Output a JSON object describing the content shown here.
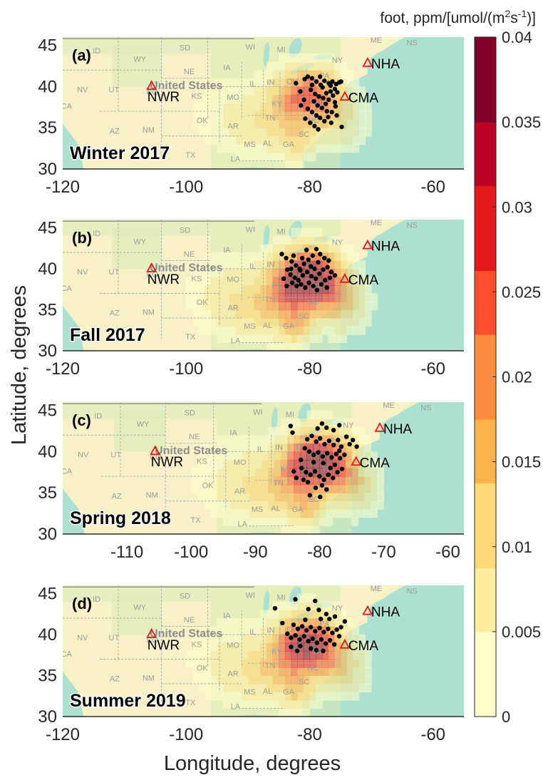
{
  "chart_data": [
    {
      "type": "scatter",
      "panel_label": "(a)",
      "season": "Winter 2017",
      "xlim": [
        -120,
        -55
      ],
      "ylim": [
        30,
        46
      ],
      "xticks": [
        -120,
        -100,
        -80,
        -60
      ],
      "yticks": [
        30,
        35,
        40,
        45
      ],
      "footprint_intensity": 0.6,
      "points": [
        [
          -82.2,
          40.4
        ],
        [
          -81.5,
          39.4
        ],
        [
          -80.8,
          40.9
        ],
        [
          -80.3,
          41.2
        ],
        [
          -79.6,
          41.0
        ],
        [
          -78.9,
          40.6
        ],
        [
          -78.2,
          40.2
        ],
        [
          -77.6,
          40.7
        ],
        [
          -76.9,
          40.4
        ],
        [
          -76.3,
          40.6
        ],
        [
          -75.7,
          40.3
        ],
        [
          -75.2,
          40.5
        ],
        [
          -79.8,
          39.6
        ],
        [
          -79.1,
          39.1
        ],
        [
          -78.5,
          38.8
        ],
        [
          -77.8,
          38.6
        ],
        [
          -77.3,
          39.2
        ],
        [
          -76.6,
          39.4
        ],
        [
          -75.9,
          39.7
        ],
        [
          -79.3,
          38.2
        ],
        [
          -78.7,
          37.7
        ],
        [
          -78.0,
          37.4
        ],
        [
          -77.4,
          37.9
        ],
        [
          -76.9,
          38.4
        ],
        [
          -80.3,
          37.3
        ],
        [
          -79.6,
          36.9
        ],
        [
          -78.9,
          36.5
        ],
        [
          -78.3,
          36.2
        ],
        [
          -77.6,
          35.8
        ],
        [
          -77.0,
          36.3
        ],
        [
          -76.4,
          36.9
        ],
        [
          -75.8,
          37.6
        ],
        [
          -76.2,
          38.9
        ],
        [
          -75.5,
          39.3
        ],
        [
          -80.7,
          36.1
        ],
        [
          -79.9,
          35.6
        ],
        [
          -79.2,
          35.2
        ],
        [
          -78.6,
          34.8
        ],
        [
          -74.8,
          35.1
        ],
        [
          -75.6,
          36.5
        ],
        [
          -74.9,
          40.6
        ],
        [
          -80.9,
          38.4
        ],
        [
          -81.4,
          37.7
        ],
        [
          -77.9,
          39.9
        ],
        [
          -79.6,
          40.2
        ],
        [
          -78.3,
          41.2
        ],
        [
          -76.6,
          40.1
        ],
        [
          -75.9,
          38.1
        ],
        [
          -77.2,
          37.0
        ],
        [
          -76.5,
          35.6
        ]
      ],
      "stations": [
        {
          "name": "NWR",
          "lon": -105.6,
          "lat": 40.1
        },
        {
          "name": "NHA",
          "lon": -70.6,
          "lat": 42.9
        },
        {
          "name": "CMA",
          "lon": -74.3,
          "lat": 38.8
        }
      ]
    },
    {
      "type": "scatter",
      "panel_label": "(b)",
      "season": "Fall 2017",
      "xlim": [
        -120,
        -55
      ],
      "ylim": [
        30,
        46
      ],
      "xticks": [
        -120,
        -100,
        -80,
        -60
      ],
      "yticks": [
        30,
        35,
        40,
        45
      ],
      "footprint_intensity": 0.95,
      "points": [
        [
          -84.5,
          41.8
        ],
        [
          -83.8,
          41.3
        ],
        [
          -82.9,
          40.9
        ],
        [
          -82.2,
          40.4
        ],
        [
          -81.5,
          39.8
        ],
        [
          -80.9,
          40.6
        ],
        [
          -80.2,
          41.1
        ],
        [
          -79.5,
          41.6
        ],
        [
          -78.9,
          42.4
        ],
        [
          -78.3,
          41.8
        ],
        [
          -77.6,
          41.3
        ],
        [
          -76.9,
          41.0
        ],
        [
          -83.6,
          39.9
        ],
        [
          -83.1,
          39.3
        ],
        [
          -82.4,
          38.9
        ],
        [
          -81.8,
          38.6
        ],
        [
          -81.1,
          39.2
        ],
        [
          -80.4,
          39.6
        ],
        [
          -79.7,
          39.1
        ],
        [
          -79.0,
          38.8
        ],
        [
          -78.4,
          39.4
        ],
        [
          -77.8,
          39.9
        ],
        [
          -77.1,
          40.2
        ],
        [
          -76.5,
          39.6
        ],
        [
          -82.8,
          38.3
        ],
        [
          -82.1,
          37.9
        ],
        [
          -81.4,
          38.1
        ],
        [
          -80.7,
          37.7
        ],
        [
          -80.1,
          38.3
        ],
        [
          -79.4,
          37.9
        ],
        [
          -78.8,
          37.4
        ],
        [
          -78.1,
          38.1
        ],
        [
          -77.5,
          38.6
        ],
        [
          -84.2,
          38.8
        ],
        [
          -83.7,
          37.9
        ],
        [
          -76.7,
          38.9
        ],
        [
          -75.9,
          39.2
        ],
        [
          -79.8,
          40.3
        ],
        [
          -81.2,
          41.3
        ],
        [
          -80.5,
          42.3
        ],
        [
          -82.6,
          41.6
        ],
        [
          -78.6,
          40.8
        ],
        [
          -77.2,
          37.7
        ],
        [
          -83.0,
          40.0
        ],
        [
          -79.2,
          40.0
        ],
        [
          -81.6,
          40.0
        ]
      ],
      "stations": [
        {
          "name": "NWR",
          "lon": -105.6,
          "lat": 40.1
        },
        {
          "name": "NHA",
          "lon": -70.6,
          "lat": 42.9
        },
        {
          "name": "CMA",
          "lon": -74.3,
          "lat": 38.8
        }
      ]
    },
    {
      "type": "scatter",
      "panel_label": "(c)",
      "season": "Spring 2018",
      "xlim": [
        -120,
        -57.5
      ],
      "ylim": [
        30,
        46
      ],
      "xticks": [
        -110,
        -100,
        -90,
        -80,
        -70,
        -60
      ],
      "yticks": [
        30,
        35,
        40,
        45
      ],
      "footprint_intensity": 0.85,
      "points": [
        [
          -84.5,
          43.1
        ],
        [
          -84.2,
          42.3
        ],
        [
          -79.6,
          43.4
        ],
        [
          -80.3,
          42.8
        ],
        [
          -78.9,
          42.9
        ],
        [
          -77.8,
          42.6
        ],
        [
          -76.9,
          43.2
        ],
        [
          -81.9,
          41.5
        ],
        [
          -81.2,
          41.9
        ],
        [
          -80.5,
          41.2
        ],
        [
          -79.9,
          41.6
        ],
        [
          -79.2,
          40.9
        ],
        [
          -78.5,
          41.3
        ],
        [
          -77.8,
          40.8
        ],
        [
          -77.1,
          41.4
        ],
        [
          -76.6,
          40.6
        ],
        [
          -75.8,
          41.8
        ],
        [
          -75.3,
          40.9
        ],
        [
          -74.8,
          41.4
        ],
        [
          -74.2,
          40.6
        ],
        [
          -82.3,
          40.4
        ],
        [
          -81.6,
          40.0
        ],
        [
          -80.9,
          39.6
        ],
        [
          -80.2,
          39.9
        ],
        [
          -79.5,
          39.4
        ],
        [
          -78.8,
          39.8
        ],
        [
          -78.1,
          39.3
        ],
        [
          -77.4,
          39.7
        ],
        [
          -76.8,
          39.2
        ],
        [
          -76.1,
          39.6
        ],
        [
          -84.0,
          37.6
        ],
        [
          -83.6,
          36.8
        ],
        [
          -82.8,
          38.0
        ],
        [
          -82.1,
          37.5
        ],
        [
          -81.4,
          37.2
        ],
        [
          -80.7,
          37.6
        ],
        [
          -80.0,
          37.0
        ],
        [
          -79.3,
          36.6
        ],
        [
          -78.6,
          37.2
        ],
        [
          -77.9,
          36.8
        ],
        [
          -77.2,
          37.5
        ],
        [
          -76.5,
          37.9
        ],
        [
          -79.6,
          35.9
        ],
        [
          -78.9,
          35.4
        ],
        [
          -80.6,
          35.6
        ],
        [
          -81.5,
          34.7
        ],
        [
          -79.9,
          34.5
        ],
        [
          -82.9,
          39.0
        ],
        [
          -77.6,
          38.4
        ],
        [
          -79.4,
          38.6
        ],
        [
          -80.9,
          38.7
        ],
        [
          -78.3,
          38.0
        ],
        [
          -81.8,
          36.3
        ],
        [
          -76.9,
          40.1
        ],
        [
          -82.5,
          36.6
        ]
      ],
      "stations": [
        {
          "name": "NWR",
          "lon": -105.6,
          "lat": 40.1
        },
        {
          "name": "NHA",
          "lon": -70.6,
          "lat": 42.9
        },
        {
          "name": "CMA",
          "lon": -74.3,
          "lat": 38.8
        }
      ]
    },
    {
      "type": "scatter",
      "panel_label": "(d)",
      "season": "Summer 2019",
      "xlim": [
        -120,
        -55
      ],
      "ylim": [
        30,
        46
      ],
      "xticks": [
        -120,
        -100,
        -80,
        -60
      ],
      "yticks": [
        30,
        35,
        40,
        45
      ],
      "footprint_intensity": 0.8,
      "points": [
        [
          -85.6,
          43.2
        ],
        [
          -84.4,
          41.4
        ],
        [
          -82.3,
          44.3
        ],
        [
          -79.1,
          44.1
        ],
        [
          -80.2,
          43.1
        ],
        [
          -78.5,
          43.0
        ],
        [
          -77.3,
          42.5
        ],
        [
          -76.8,
          41.9
        ],
        [
          -75.9,
          42.2
        ],
        [
          -82.6,
          41.2
        ],
        [
          -81.9,
          40.7
        ],
        [
          -81.2,
          41.0
        ],
        [
          -80.5,
          40.5
        ],
        [
          -79.8,
          40.9
        ],
        [
          -79.1,
          40.4
        ],
        [
          -78.4,
          40.8
        ],
        [
          -77.7,
          40.3
        ],
        [
          -77.0,
          40.7
        ],
        [
          -76.3,
          40.2
        ],
        [
          -75.6,
          40.6
        ],
        [
          -74.9,
          40.9
        ],
        [
          -74.3,
          41.6
        ],
        [
          -83.6,
          40.1
        ],
        [
          -83.0,
          39.6
        ],
        [
          -82.3,
          39.9
        ],
        [
          -81.6,
          39.4
        ],
        [
          -80.9,
          39.8
        ],
        [
          -80.2,
          39.2
        ],
        [
          -79.5,
          39.5
        ],
        [
          -78.8,
          39.0
        ],
        [
          -78.1,
          39.4
        ],
        [
          -77.4,
          38.9
        ],
        [
          -76.7,
          39.3
        ],
        [
          -76.0,
          38.8
        ],
        [
          -79.8,
          38.3
        ],
        [
          -78.9,
          38.1
        ],
        [
          -77.8,
          38.0
        ],
        [
          -81.5,
          38.6
        ],
        [
          -83.0,
          38.5
        ],
        [
          -80.7,
          41.8
        ],
        [
          -78.2,
          41.9
        ],
        [
          -75.2,
          39.8
        ],
        [
          -82.0,
          38.0
        ]
      ],
      "stations": [
        {
          "name": "NWR",
          "lon": -105.6,
          "lat": 40.1
        },
        {
          "name": "NHA",
          "lon": -70.6,
          "lat": 42.9
        },
        {
          "name": "CMA",
          "lon": -74.3,
          "lat": 38.8
        }
      ]
    }
  ],
  "axes": {
    "xlabel": "Longitude, degrees",
    "ylabel": "Latitude, degrees"
  },
  "colorbar": {
    "title_prefix": "foot, ppm/[umol/(m",
    "title_sup1": "2",
    "title_mid": "s",
    "title_sup2": "-1",
    "title_suffix": ")]",
    "min": 0,
    "max": 0.04,
    "ticks": [
      "0",
      "0.005",
      "0.01",
      "0.015",
      "0.02",
      "0.025",
      "0.03",
      "0.035",
      "0.04"
    ],
    "colors": [
      "#ffffcc",
      "#ffeda0",
      "#fed976",
      "#feb24c",
      "#fd8d3c",
      "#fc4e2a",
      "#e31a1c",
      "#bd0026",
      "#800026"
    ]
  },
  "map": {
    "country_label": "United States",
    "state_labels": [
      {
        "t": "ID",
        "lon": -114.5,
        "lat": 44.0
      },
      {
        "t": "WY",
        "lon": -107.5,
        "lat": 43.0
      },
      {
        "t": "SD",
        "lon": -100.2,
        "lat": 44.4
      },
      {
        "t": "MN",
        "lon": -94.3,
        "lat": 46.0
      },
      {
        "t": "WI",
        "lon": -89.6,
        "lat": 44.5
      },
      {
        "t": "MI",
        "lon": -84.6,
        "lat": 44.2
      },
      {
        "t": "NE",
        "lon": -99.5,
        "lat": 41.5
      },
      {
        "t": "IA",
        "lon": -93.4,
        "lat": 42.0
      },
      {
        "t": "IL",
        "lon": -89.2,
        "lat": 40.0
      },
      {
        "t": "IN",
        "lon": -86.3,
        "lat": 40.2
      },
      {
        "t": "OH",
        "lon": -82.8,
        "lat": 40.3
      },
      {
        "t": "PA",
        "lon": -77.6,
        "lat": 41.0
      },
      {
        "t": "NY",
        "lon": -75.5,
        "lat": 42.9
      },
      {
        "t": "ME",
        "lon": -69.2,
        "lat": 45.3
      },
      {
        "t": "NS",
        "lon": -63.4,
        "lat": 45.0
      },
      {
        "t": "NV",
        "lon": -116.8,
        "lat": 39.3
      },
      {
        "t": "UT",
        "lon": -111.7,
        "lat": 39.3
      },
      {
        "t": "CO",
        "lon": -105.5,
        "lat": 39.0
      },
      {
        "t": "KS",
        "lon": -98.3,
        "lat": 38.5
      },
      {
        "t": "MO",
        "lon": -92.4,
        "lat": 38.4
      },
      {
        "t": "KY",
        "lon": -85.3,
        "lat": 37.6
      },
      {
        "t": "VA",
        "lon": -78.8,
        "lat": 37.6
      },
      {
        "t": "CA",
        "lon": -119.4,
        "lat": 37.3
      },
      {
        "t": "AZ",
        "lon": -111.6,
        "lat": 34.3
      },
      {
        "t": "NM",
        "lon": -106.1,
        "lat": 34.4
      },
      {
        "t": "OK",
        "lon": -97.4,
        "lat": 35.6
      },
      {
        "t": "AR",
        "lon": -92.4,
        "lat": 34.9
      },
      {
        "t": "TN",
        "lon": -86.4,
        "lat": 35.9
      },
      {
        "t": "NC",
        "lon": -79.4,
        "lat": 35.6
      },
      {
        "t": "SC",
        "lon": -80.9,
        "lat": 33.9
      },
      {
        "t": "MS",
        "lon": -89.7,
        "lat": 32.7
      },
      {
        "t": "AL",
        "lon": -86.8,
        "lat": 32.8
      },
      {
        "t": "GA",
        "lon": -83.4,
        "lat": 32.7
      },
      {
        "t": "TX",
        "lon": -99.3,
        "lat": 31.4
      },
      {
        "t": "LA",
        "lon": -92.0,
        "lat": 30.9
      }
    ]
  }
}
